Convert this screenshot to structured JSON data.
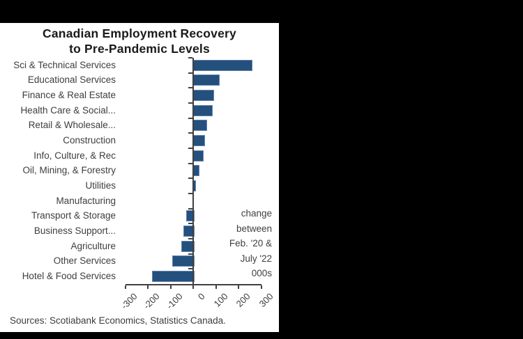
{
  "window": {
    "background_color": "#000000",
    "panel_color": "#FFFFFF"
  },
  "chart_data": {
    "type": "bar",
    "orientation": "horizontal",
    "title": "Canadian Employment Recovery to Pre-Pandemic Levels",
    "title_lines": [
      "Canadian Employment Recovery",
      "to Pre-Pandemic Levels"
    ],
    "categories": [
      "Sci & Technical Services",
      "Educational Services",
      "Finance & Real Estate",
      "Health Care & Social...",
      "Retail & Wholesale...",
      "Construction",
      "Info, Culture, & Rec",
      "Oil, Mining, & Forestry",
      "Utilities",
      "Manufacturing",
      "Transport & Storage",
      "Business Support...",
      "Agriculture",
      "Other Services",
      "Hotel & Food Services"
    ],
    "values": [
      255,
      112,
      85,
      80,
      56,
      46,
      40,
      20,
      5,
      0,
      -30,
      -42,
      -53,
      -93,
      -181
    ],
    "x_ticks": [
      -300,
      -200,
      -100,
      0,
      100,
      200,
      300
    ],
    "xlim": [
      -300,
      300
    ],
    "annotation_lines": [
      "change",
      "between",
      "Feb. '20 &",
      "July '22",
      "000s"
    ],
    "source": "Sources: Scotiabank Economics, Statistics Canada.",
    "bar_color": "#24507D",
    "axis_color": "#404040",
    "label_color": "#3D3D3D",
    "title_color": "#1A1A1A",
    "legend": "none",
    "grid": "off"
  }
}
